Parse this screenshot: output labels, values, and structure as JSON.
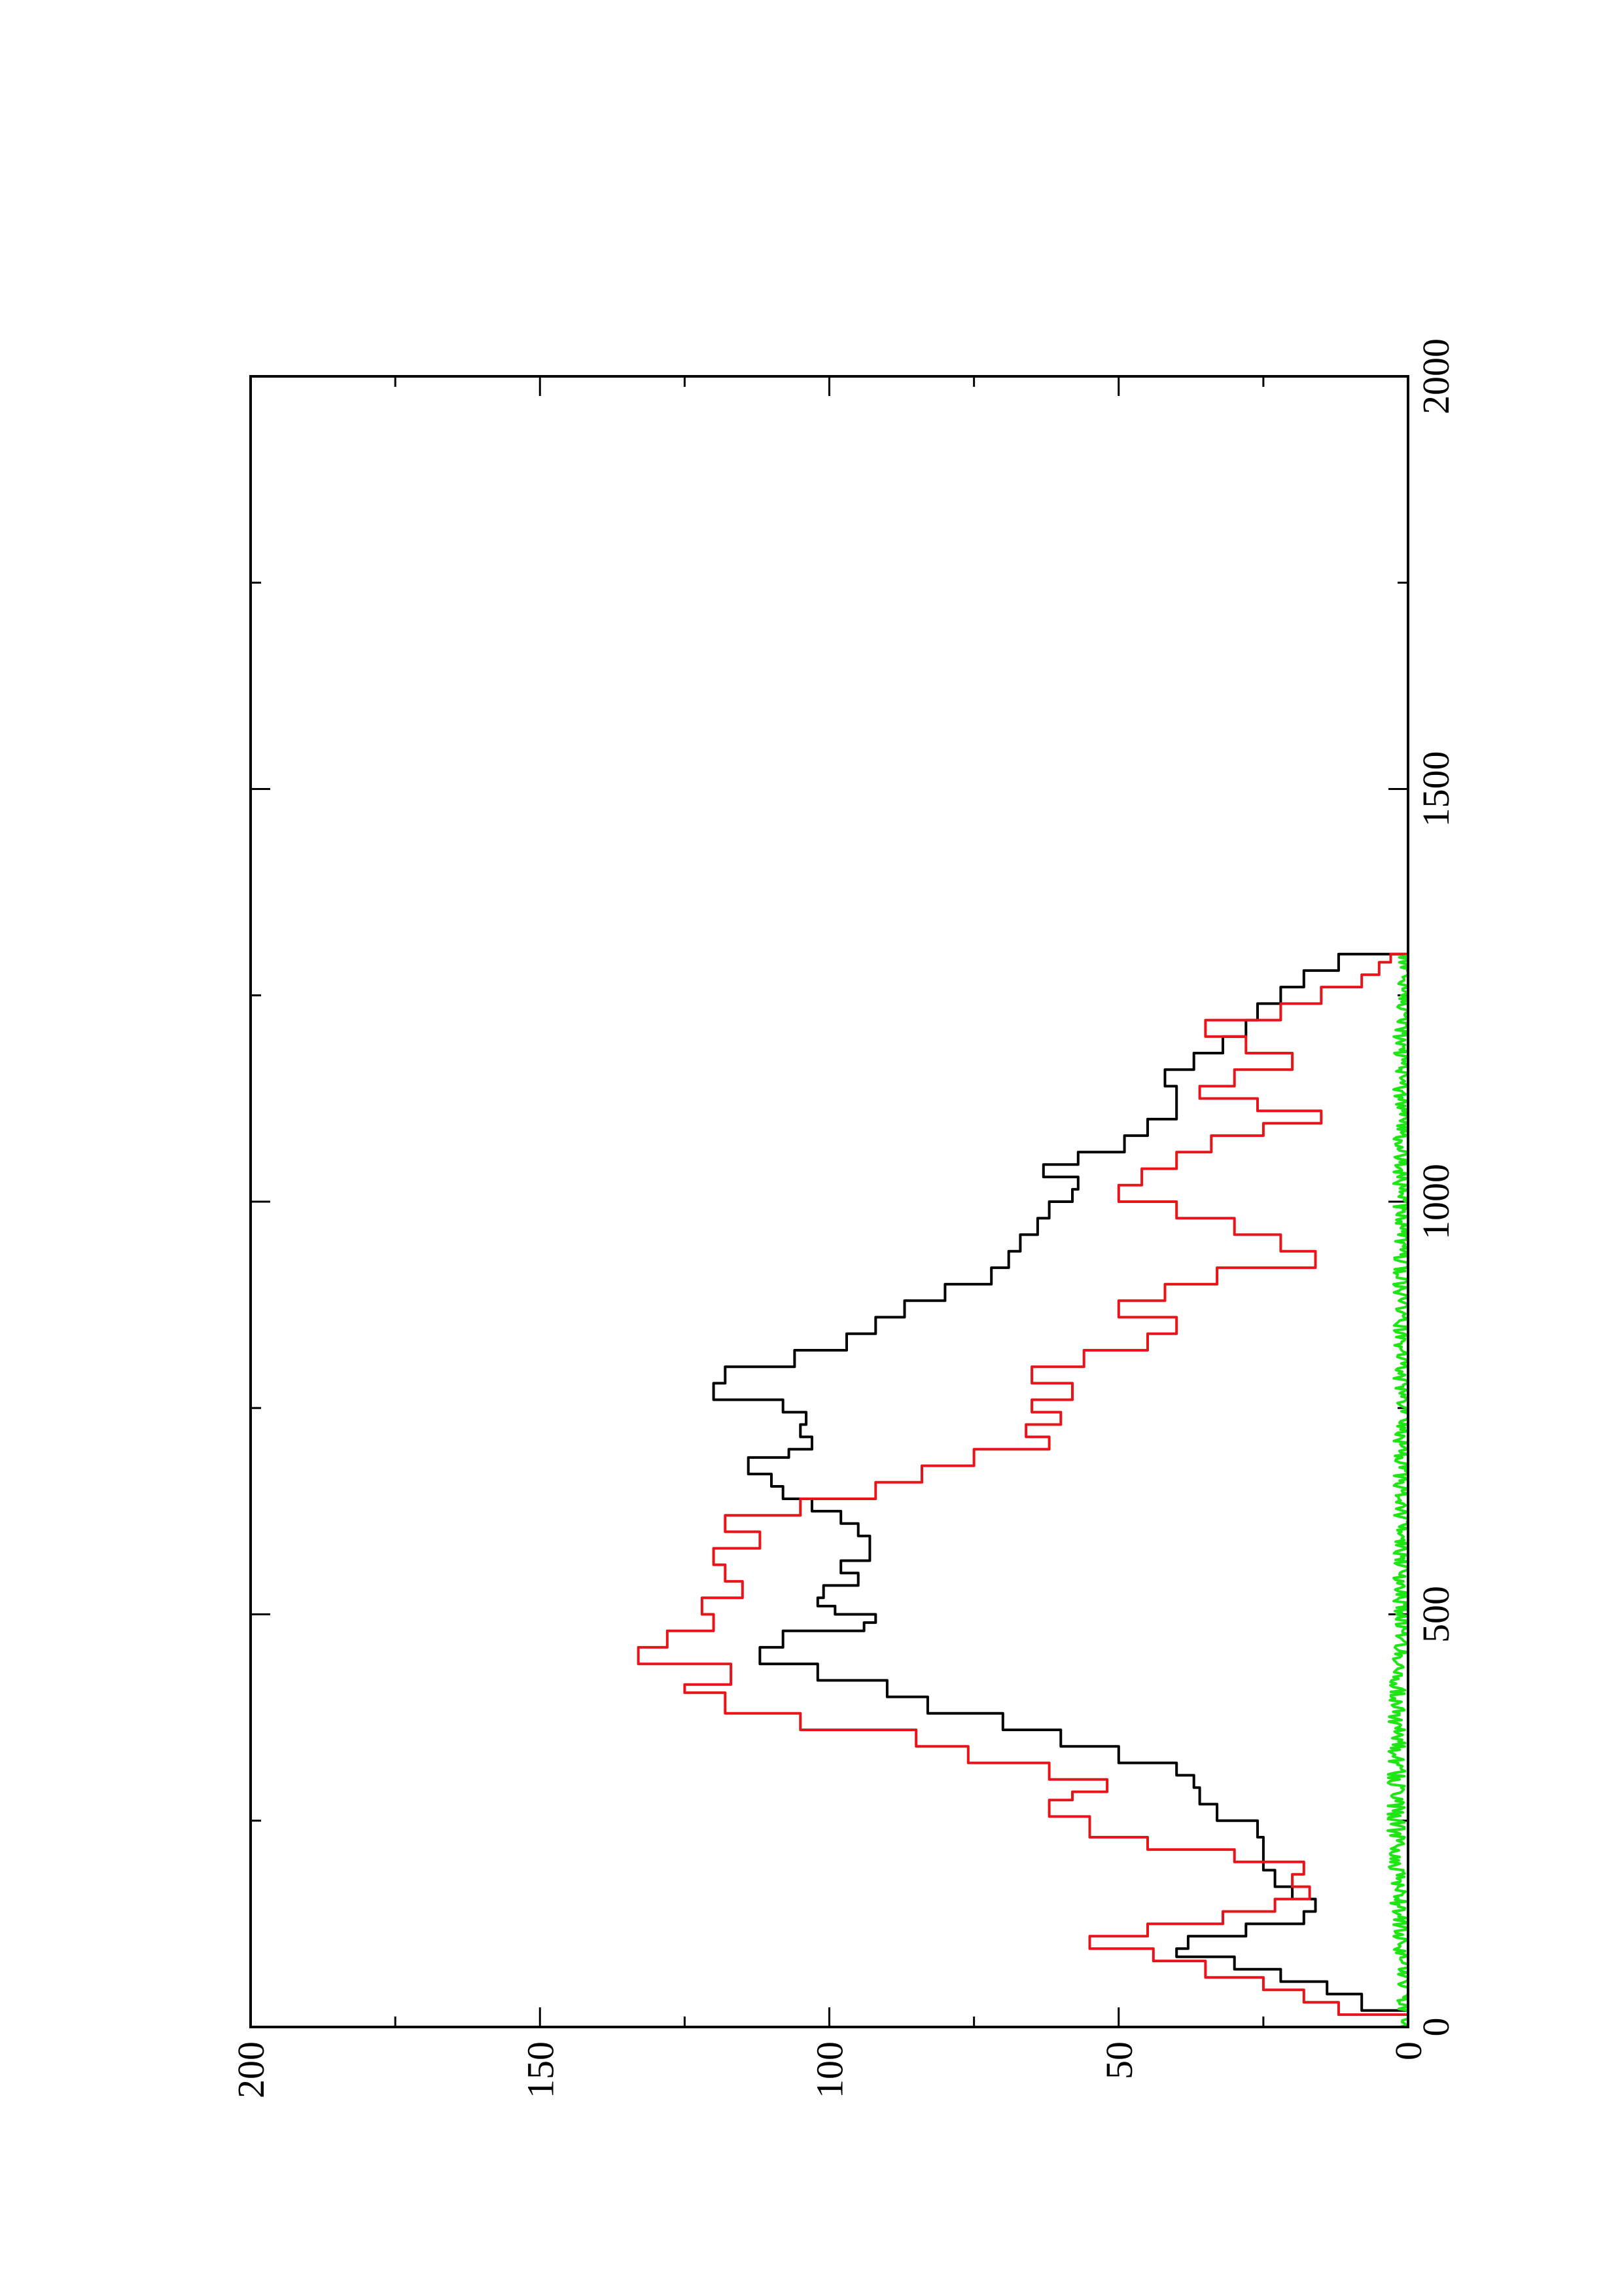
{
  "chart_data": {
    "type": "line",
    "title": "",
    "xlabel": "",
    "ylabel": "",
    "xlim": [
      0,
      2000
    ],
    "ylim": [
      0,
      200
    ],
    "x_ticks": [
      0,
      500,
      1000,
      1500,
      2000
    ],
    "y_ticks": [
      0,
      50,
      100,
      150,
      200
    ],
    "x_tick_labels": [
      "0",
      "500",
      "1000",
      "1500",
      "2000"
    ],
    "y_tick_labels": [
      "0",
      "50",
      "100",
      "150",
      "200"
    ],
    "x_minor_step": 250,
    "y_minor_step": 25,
    "orientation": "rotated 90 degrees counter-clockwise",
    "grid": false,
    "legend": "none",
    "series": [
      {
        "color": "#000000",
        "style": "step",
        "x": [
          0,
          20,
          40,
          55,
          70,
          85,
          95,
          110,
          125,
          140,
          155,
          170,
          190,
          210,
          230,
          250,
          270,
          290,
          305,
          320,
          340,
          360,
          380,
          400,
          420,
          440,
          460,
          480,
          490,
          500,
          510,
          520,
          535,
          550,
          565,
          580,
          595,
          610,
          625,
          640,
          655,
          670,
          690,
          700,
          715,
          730,
          745,
          760,
          780,
          800,
          820,
          840,
          860,
          880,
          900,
          920,
          940,
          960,
          980,
          1000,
          1015,
          1030,
          1045,
          1060,
          1080,
          1100,
          1120,
          1140,
          1160,
          1180,
          1200,
          1220,
          1240,
          1260,
          1280,
          1300
        ],
        "y": [
          0,
          8,
          14,
          22,
          30,
          40,
          38,
          28,
          18,
          16,
          20,
          23,
          25,
          25,
          26,
          33,
          36,
          37,
          40,
          50,
          60,
          70,
          83,
          90,
          102,
          112,
          108,
          94,
          92,
          99,
          102,
          101,
          95,
          98,
          93,
          93,
          95,
          98,
          103,
          108,
          110,
          114,
          107,
          103,
          105,
          104,
          108,
          120,
          118,
          106,
          97,
          92,
          87,
          80,
          72,
          69,
          67,
          64,
          62,
          58,
          57,
          63,
          57,
          49,
          45,
          40,
          40,
          42,
          37,
          32,
          28,
          26,
          22,
          18,
          12,
          0
        ]
      },
      {
        "color": "#e8141a",
        "style": "step",
        "x": [
          0,
          15,
          30,
          45,
          60,
          80,
          95,
          110,
          125,
          140,
          155,
          170,
          185,
          200,
          215,
          230,
          255,
          275,
          285,
          300,
          320,
          340,
          360,
          380,
          405,
          415,
          440,
          460,
          480,
          500,
          520,
          540,
          560,
          580,
          600,
          620,
          640,
          660,
          680,
          700,
          715,
          730,
          745,
          760,
          780,
          800,
          820,
          840,
          860,
          880,
          900,
          920,
          940,
          960,
          980,
          1000,
          1020,
          1040,
          1060,
          1080,
          1095,
          1110,
          1125,
          1140,
          1160,
          1180,
          1200,
          1220,
          1240,
          1260,
          1275,
          1290,
          1300
        ],
        "y": [
          0,
          12,
          18,
          25,
          35,
          44,
          55,
          45,
          32,
          23,
          17,
          20,
          18,
          30,
          45,
          55,
          62,
          58,
          52,
          62,
          76,
          85,
          105,
          118,
          125,
          117,
          133,
          128,
          120,
          122,
          115,
          118,
          120,
          112,
          118,
          105,
          92,
          84,
          75,
          62,
          66,
          60,
          65,
          58,
          65,
          56,
          45,
          40,
          50,
          42,
          33,
          16,
          22,
          30,
          40,
          50,
          46,
          40,
          34,
          25,
          15,
          26,
          36,
          30,
          20,
          28,
          35,
          22,
          15,
          8,
          5,
          3,
          0
        ]
      },
      {
        "color": "#1ee614",
        "style": "noisy",
        "x": [
          0,
          100,
          200,
          300,
          400,
          500,
          600,
          700,
          800,
          900,
          1000,
          1100,
          1200,
          1300
        ],
        "y": [
          0,
          1,
          2,
          2,
          2,
          1,
          1,
          1,
          1,
          1,
          1,
          1,
          1,
          0
        ]
      }
    ]
  }
}
